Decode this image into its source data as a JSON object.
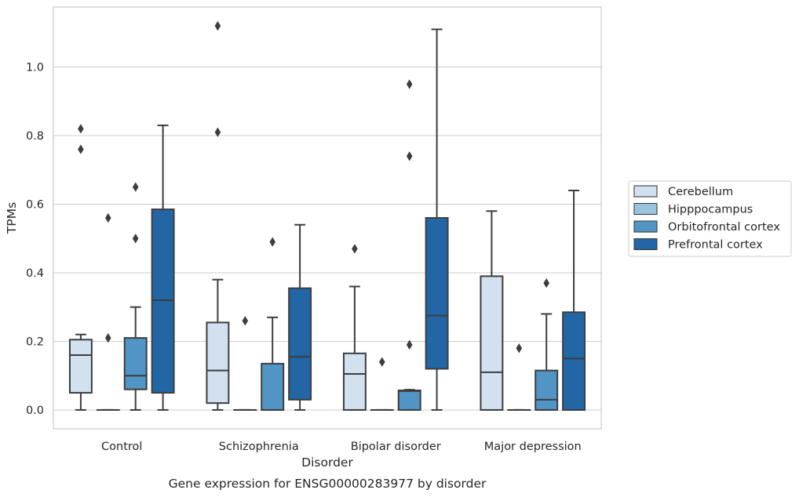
{
  "chart_data": {
    "type": "box",
    "title": "",
    "caption": "Gene expression for ENSG00000283977 by disorder",
    "xlabel": "Disorder",
    "ylabel": "TPMs",
    "ylim": [
      -0.055,
      1.175
    ],
    "yticks": [
      "0.0",
      "0.2",
      "0.4",
      "0.6",
      "0.8",
      "1.0"
    ],
    "ytick_values": [
      0,
      0.2,
      0.4,
      0.6,
      0.8,
      1.0
    ],
    "grid": "horizontal",
    "legend_position": "right",
    "categories": [
      "Control",
      "Schizophrenia",
      "Bipolar disorder",
      "Major depression"
    ],
    "series": [
      {
        "name": "Cerebellum",
        "color": "#d2e1f0",
        "boxes": [
          {
            "whislo": 0.0,
            "q1": 0.05,
            "med": 0.16,
            "q3": 0.205,
            "whishi": 0.22,
            "fliers": [
              0.76,
              0.82
            ]
          },
          {
            "whislo": 0.0,
            "q1": 0.02,
            "med": 0.115,
            "q3": 0.255,
            "whishi": 0.38,
            "fliers": [
              0.81,
              1.12
            ]
          },
          {
            "whislo": 0.0,
            "q1": 0.0,
            "med": 0.105,
            "q3": 0.165,
            "whishi": 0.36,
            "fliers": [
              0.47
            ]
          },
          {
            "whislo": 0.0,
            "q1": 0.0,
            "med": 0.11,
            "q3": 0.39,
            "whishi": 0.58,
            "fliers": []
          }
        ]
      },
      {
        "name": "Hipppocampus",
        "color": "#9ac4de",
        "boxes": [
          {
            "whislo": 0.0,
            "q1": 0.0,
            "med": 0.0,
            "q3": 0.0,
            "whishi": 0.0,
            "fliers": [
              0.21,
              0.56
            ]
          },
          {
            "whislo": 0.0,
            "q1": 0.0,
            "med": 0.0,
            "q3": 0.0,
            "whishi": 0.0,
            "fliers": [
              0.26
            ]
          },
          {
            "whislo": 0.0,
            "q1": 0.0,
            "med": 0.0,
            "q3": 0.0,
            "whishi": 0.0,
            "fliers": [
              0.14
            ]
          },
          {
            "whislo": 0.0,
            "q1": 0.0,
            "med": 0.0,
            "q3": 0.0,
            "whishi": 0.0,
            "fliers": [
              0.18
            ]
          }
        ]
      },
      {
        "name": "Orbitofrontal cortex",
        "color": "#5095c6",
        "boxes": [
          {
            "whislo": 0.0,
            "q1": 0.06,
            "med": 0.1,
            "q3": 0.21,
            "whishi": 0.3,
            "fliers": [
              0.5,
              0.65
            ]
          },
          {
            "whislo": 0.0,
            "q1": 0.0,
            "med": 0.0,
            "q3": 0.135,
            "whishi": 0.27,
            "fliers": [
              0.49
            ]
          },
          {
            "whislo": 0.0,
            "q1": 0.0,
            "med": 0.055,
            "q3": 0.057,
            "whishi": 0.059,
            "fliers": [
              0.19,
              0.74,
              0.95
            ]
          },
          {
            "whislo": 0.0,
            "q1": 0.0,
            "med": 0.03,
            "q3": 0.115,
            "whishi": 0.28,
            "fliers": [
              0.37
            ]
          }
        ]
      },
      {
        "name": "Prefrontal cortex",
        "color": "#2266a6",
        "boxes": [
          {
            "whislo": 0.0,
            "q1": 0.05,
            "med": 0.32,
            "q3": 0.585,
            "whishi": 0.83,
            "fliers": []
          },
          {
            "whislo": 0.0,
            "q1": 0.03,
            "med": 0.155,
            "q3": 0.355,
            "whishi": 0.54,
            "fliers": []
          },
          {
            "whislo": 0.0,
            "q1": 0.12,
            "med": 0.275,
            "q3": 0.56,
            "whishi": 1.11,
            "fliers": []
          },
          {
            "whislo": 0.0,
            "q1": 0.0,
            "med": 0.15,
            "q3": 0.285,
            "whishi": 0.64,
            "fliers": []
          }
        ]
      }
    ]
  }
}
